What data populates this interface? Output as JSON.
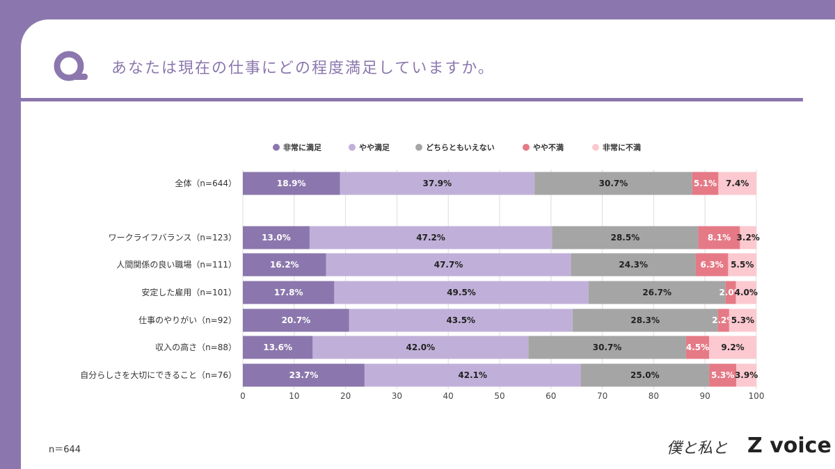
{
  "question": "あなたは現在の仕事にどの程度満足していますか。",
  "footnote": "n＝644",
  "brand": {
    "script": "僕と私と",
    "logo": "voice",
    "logo_mark": "Z"
  },
  "colors": {
    "theme": "#8b77ad"
  },
  "chart_data": {
    "type": "bar",
    "orientation": "horizontal",
    "stacked": true,
    "xlim": [
      0,
      100
    ],
    "xticks": [
      0,
      10,
      20,
      30,
      40,
      50,
      60,
      70,
      80,
      90,
      100
    ],
    "grid": true,
    "legend_position": "top",
    "categories": [
      "全体（n=644）",
      "ワークライフバランス（n=123）",
      "人間関係の良い職場（n=111）",
      "安定した雇用（n=101）",
      "仕事のやりがい（n=92）",
      "収入の高さ（n=88）",
      "自分らしさを大切にできること（n=76）"
    ],
    "series": [
      {
        "name": "非常に満足",
        "color": "#8b77ad",
        "values": [
          18.9,
          13.0,
          16.2,
          17.8,
          20.7,
          13.6,
          23.7
        ]
      },
      {
        "name": "やや満足",
        "color": "#c0b0d9",
        "values": [
          37.9,
          47.2,
          47.7,
          49.5,
          43.5,
          42.0,
          42.1
        ]
      },
      {
        "name": "どちらともいえない",
        "color": "#a5a5a5",
        "values": [
          30.7,
          28.5,
          24.3,
          26.7,
          28.3,
          30.7,
          25.0
        ]
      },
      {
        "name": "やや不満",
        "color": "#e57a86",
        "values": [
          5.1,
          8.1,
          6.3,
          2.0,
          2.2,
          4.5,
          5.3
        ]
      },
      {
        "name": "非常に不満",
        "color": "#fbc9cf",
        "values": [
          7.4,
          3.2,
          5.5,
          4.0,
          5.3,
          9.2,
          3.9
        ]
      }
    ]
  }
}
